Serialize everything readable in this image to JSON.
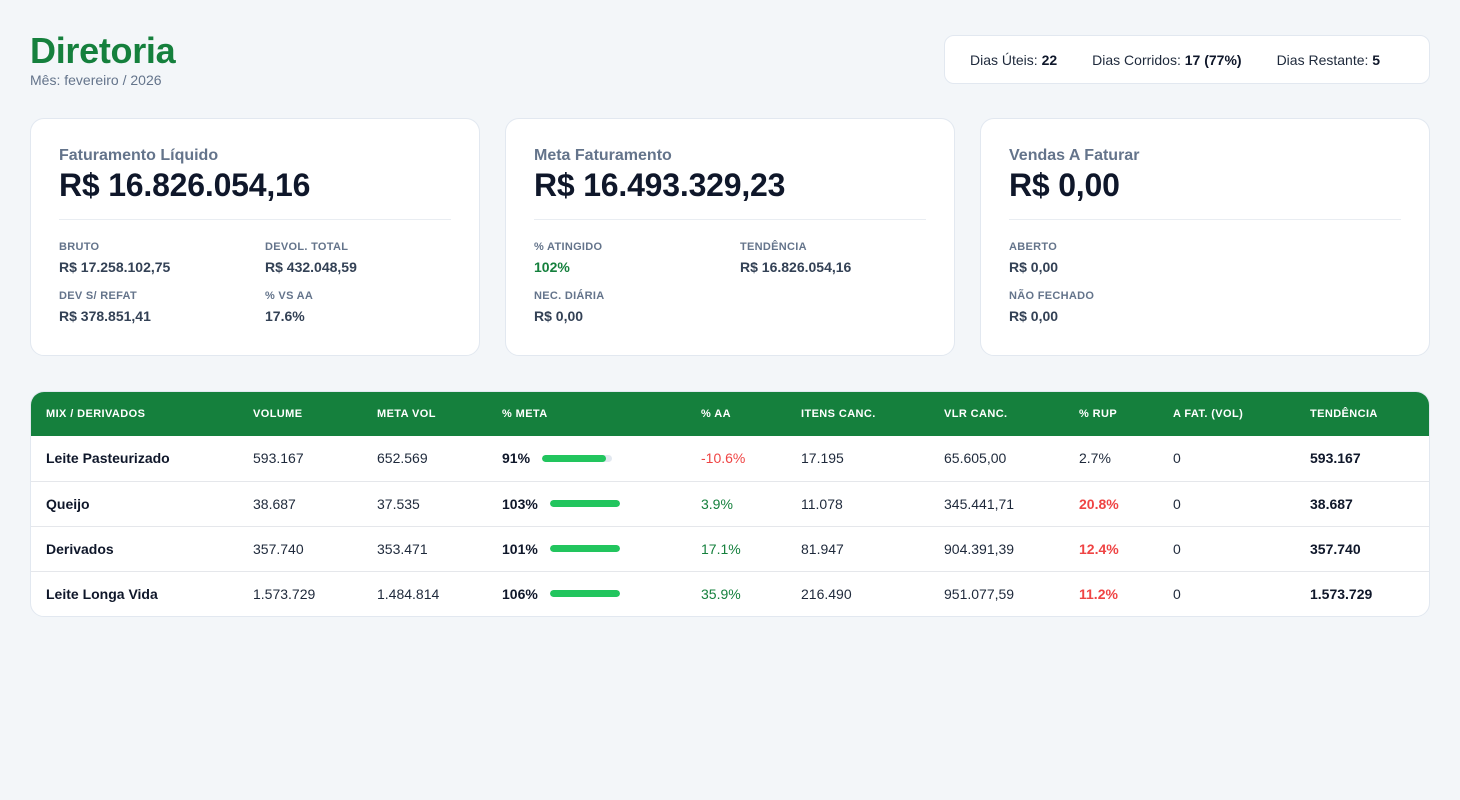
{
  "header": {
    "title": "Diretoria",
    "subtitle": "Mês: fevereiro / 2026"
  },
  "days": [
    {
      "label": "Dias Úteis:",
      "value": "22"
    },
    {
      "label": "Dias Corridos:",
      "value": "17 (77%)"
    },
    {
      "label": "Dias Restante:",
      "value": "5"
    }
  ],
  "cards": [
    {
      "label": "Faturamento Líquido",
      "value": "R$ 16.826.054,16",
      "metrics": [
        {
          "label": "BRUTO",
          "value": "R$ 17.258.102,75",
          "highlight": false
        },
        {
          "label": "DEVOL. TOTAL",
          "value": "R$ 432.048,59",
          "highlight": false
        },
        {
          "label": "DEV S/ REFAT",
          "value": "R$ 378.851,41",
          "highlight": false
        },
        {
          "label": "% VS AA",
          "value": "17.6%",
          "highlight": false
        }
      ]
    },
    {
      "label": "Meta Faturamento",
      "value": "R$ 16.493.329,23",
      "metrics": [
        {
          "label": "% ATINGIDO",
          "value": "102%",
          "highlight": true
        },
        {
          "label": "TENDÊNCIA",
          "value": "R$ 16.826.054,16",
          "highlight": false
        },
        {
          "label": "NEC. DIÁRIA",
          "value": "R$ 0,00",
          "highlight": false
        }
      ]
    },
    {
      "label": "Vendas A Faturar",
      "value": "R$ 0,00",
      "metrics": [
        {
          "label": "ABERTO",
          "value": "R$ 0,00",
          "highlight": false
        },
        {
          "label": "",
          "value": "",
          "highlight": false
        },
        {
          "label": "NÃO FECHADO",
          "value": "R$ 0,00",
          "highlight": false
        }
      ]
    }
  ],
  "table": {
    "columns": [
      "MIX / DERIVADOS",
      "VOLUME",
      "META VOL",
      "% META",
      "% AA",
      "ITENS CANC.",
      "VLR CANC.",
      "% RUP",
      "A FAT. (VOL)",
      "TENDÊNCIA"
    ],
    "rows": [
      {
        "mix": "Leite Pasteurizado",
        "volume": "593.167",
        "meta_vol": "652.569",
        "pct_meta": "91%",
        "meta_fill": 0.91,
        "pct_aa": "-10.6%",
        "aa_sign": "neg",
        "itens_canc": "17.195",
        "vlr_canc": "65.605,00",
        "pct_rup": "2.7%",
        "rup_alert": false,
        "a_fat": "0",
        "tendencia": "593.167"
      },
      {
        "mix": "Queijo",
        "volume": "38.687",
        "meta_vol": "37.535",
        "pct_meta": "103%",
        "meta_fill": 1.0,
        "pct_aa": "3.9%",
        "aa_sign": "pos",
        "itens_canc": "11.078",
        "vlr_canc": "345.441,71",
        "pct_rup": "20.8%",
        "rup_alert": true,
        "a_fat": "0",
        "tendencia": "38.687"
      },
      {
        "mix": "Derivados",
        "volume": "357.740",
        "meta_vol": "353.471",
        "pct_meta": "101%",
        "meta_fill": 1.0,
        "pct_aa": "17.1%",
        "aa_sign": "pos",
        "itens_canc": "81.947",
        "vlr_canc": "904.391,39",
        "pct_rup": "12.4%",
        "rup_alert": true,
        "a_fat": "0",
        "tendencia": "357.740"
      },
      {
        "mix": "Leite Longa Vida",
        "volume": "1.573.729",
        "meta_vol": "1.484.814",
        "pct_meta": "106%",
        "meta_fill": 1.0,
        "pct_aa": "35.9%",
        "aa_sign": "pos",
        "itens_canc": "216.490",
        "vlr_canc": "951.077,59",
        "pct_rup": "11.2%",
        "rup_alert": true,
        "a_fat": "0",
        "tendencia": "1.573.729"
      }
    ]
  },
  "colors": {
    "brand_green": "#15803d",
    "bar_green": "#22c55e",
    "alert_red": "#ef4444"
  }
}
